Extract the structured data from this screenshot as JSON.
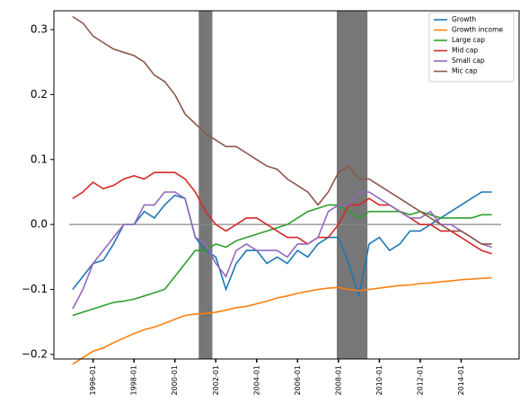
{
  "chart_data": {
    "type": "line",
    "x": [
      "1995-01",
      "1995-07",
      "1996-01",
      "1996-07",
      "1997-01",
      "1997-07",
      "1998-01",
      "1998-07",
      "1999-01",
      "1999-07",
      "2000-01",
      "2000-07",
      "2001-01",
      "2001-07",
      "2002-01",
      "2002-07",
      "2003-01",
      "2003-07",
      "2004-01",
      "2004-07",
      "2005-01",
      "2005-07",
      "2006-01",
      "2006-07",
      "2007-01",
      "2007-07",
      "2008-01",
      "2008-07",
      "2009-01",
      "2009-07",
      "2010-01",
      "2010-07",
      "2011-01",
      "2011-07",
      "2012-01",
      "2012-07",
      "2013-01",
      "2013-07",
      "2014-01",
      "2014-07",
      "2015-01",
      "2015-07"
    ],
    "series": [
      {
        "name": "Growth",
        "color": "#1f77b4",
        "values": [
          -0.1,
          -0.08,
          -0.06,
          -0.055,
          -0.03,
          0.0,
          0.0,
          0.02,
          0.01,
          0.03,
          0.045,
          0.04,
          -0.02,
          -0.04,
          -0.05,
          -0.1,
          -0.06,
          -0.04,
          -0.04,
          -0.06,
          -0.05,
          -0.06,
          -0.04,
          -0.05,
          -0.03,
          -0.02,
          -0.02,
          -0.06,
          -0.11,
          -0.03,
          -0.02,
          -0.04,
          -0.03,
          -0.01,
          -0.01,
          0.0,
          0.01,
          0.02,
          0.03,
          0.04,
          0.05,
          0.05
        ]
      },
      {
        "name": "Growth income",
        "color": "#ff7f0e",
        "values": [
          -0.215,
          -0.205,
          -0.195,
          -0.19,
          -0.182,
          -0.175,
          -0.168,
          -0.162,
          -0.158,
          -0.152,
          -0.146,
          -0.14,
          -0.138,
          -0.137,
          -0.135,
          -0.132,
          -0.128,
          -0.126,
          -0.122,
          -0.118,
          -0.113,
          -0.11,
          -0.106,
          -0.103,
          -0.1,
          -0.098,
          -0.097,
          -0.1,
          -0.102,
          -0.1,
          -0.098,
          -0.096,
          -0.094,
          -0.093,
          -0.091,
          -0.09,
          -0.088,
          -0.087,
          -0.085,
          -0.084,
          -0.083,
          -0.082
        ]
      },
      {
        "name": "Large cap",
        "color": "#2ca02c",
        "values": [
          -0.14,
          -0.135,
          -0.13,
          -0.125,
          -0.12,
          -0.118,
          -0.115,
          -0.11,
          -0.105,
          -0.1,
          -0.08,
          -0.06,
          -0.04,
          -0.04,
          -0.03,
          -0.035,
          -0.025,
          -0.02,
          -0.015,
          -0.01,
          -0.005,
          0.0,
          0.01,
          0.02,
          0.025,
          0.03,
          0.03,
          0.02,
          0.01,
          0.02,
          0.02,
          0.02,
          0.02,
          0.015,
          0.02,
          0.015,
          0.01,
          0.01,
          0.01,
          0.01,
          0.015,
          0.015
        ]
      },
      {
        "name": "Mid cap",
        "color": "#d62728",
        "values": [
          0.04,
          0.05,
          0.065,
          0.055,
          0.06,
          0.07,
          0.075,
          0.07,
          0.08,
          0.08,
          0.08,
          0.07,
          0.05,
          0.02,
          0.0,
          -0.01,
          0.0,
          0.01,
          0.01,
          0.0,
          -0.01,
          -0.02,
          -0.02,
          -0.03,
          -0.02,
          -0.02,
          0.0,
          0.03,
          0.03,
          0.04,
          0.03,
          0.03,
          0.02,
          0.01,
          0.0,
          0.0,
          -0.01,
          -0.01,
          -0.02,
          -0.03,
          -0.04,
          -0.045
        ]
      },
      {
        "name": "Small cap",
        "color": "#9467bd",
        "values": [
          -0.13,
          -0.1,
          -0.06,
          -0.04,
          -0.02,
          0.0,
          0.0,
          0.03,
          0.03,
          0.05,
          0.05,
          0.04,
          -0.02,
          -0.03,
          -0.06,
          -0.08,
          -0.04,
          -0.03,
          -0.04,
          -0.04,
          -0.04,
          -0.05,
          -0.03,
          -0.03,
          -0.02,
          0.02,
          0.03,
          0.03,
          0.05,
          0.05,
          0.04,
          0.03,
          0.02,
          0.01,
          0.01,
          0.02,
          0.0,
          0.0,
          -0.01,
          -0.02,
          -0.03,
          -0.035
        ]
      },
      {
        "name": "Mic cap",
        "color": "#8c564b",
        "values": [
          0.32,
          0.31,
          0.29,
          0.28,
          0.27,
          0.265,
          0.26,
          0.25,
          0.23,
          0.22,
          0.2,
          0.17,
          0.155,
          0.14,
          0.13,
          0.12,
          0.12,
          0.11,
          0.1,
          0.09,
          0.085,
          0.07,
          0.06,
          0.05,
          0.03,
          0.05,
          0.08,
          0.09,
          0.07,
          0.07,
          0.06,
          0.05,
          0.04,
          0.03,
          0.02,
          0.01,
          0.0,
          -0.01,
          -0.01,
          -0.02,
          -0.03,
          -0.03
        ]
      }
    ],
    "shaded_regions": [
      [
        "2001-03",
        "2001-11"
      ],
      [
        "2007-12",
        "2009-06"
      ]
    ],
    "shade_color": "#777777",
    "reference_line": 0,
    "xlim": [
      "1994-02",
      "2016-11"
    ],
    "xticks": [
      "1996-01",
      "1998-01",
      "2000-01",
      "2002-01",
      "2004-01",
      "2006-01",
      "2008-01",
      "2010-01",
      "2012-01",
      "2014-01"
    ],
    "ylim": [
      -0.207,
      0.329
    ],
    "yticks": [
      {
        "value": -0.2,
        "label": "−0.2"
      },
      {
        "value": -0.1,
        "label": "−0.1"
      },
      {
        "value": 0,
        "label": "0.0"
      },
      0.1,
      0.2,
      0.3
    ],
    "legend": "upper right"
  }
}
